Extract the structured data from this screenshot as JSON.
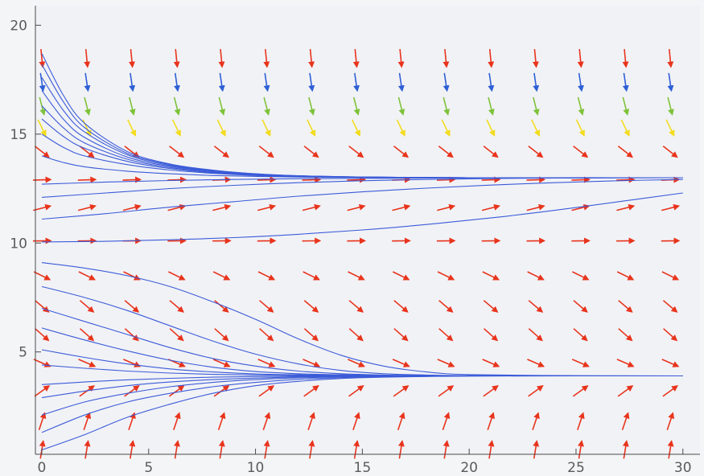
{
  "chart_data": {
    "type": "vector-field",
    "title": "",
    "xlabel": "",
    "ylabel": "",
    "xlim": [
      -0.3,
      30.8
    ],
    "ylim": [
      0.3,
      20.9
    ],
    "x_ticks": [
      0,
      5,
      10,
      15,
      20,
      25,
      30
    ],
    "y_ticks": [
      5,
      10,
      15,
      20
    ],
    "x_tick_labels": [
      "0",
      "5",
      "10",
      "15",
      "20",
      "25",
      "30"
    ],
    "y_tick_labels": [
      "5",
      "10",
      "15",
      "20"
    ],
    "grid": false,
    "legend": "none",
    "arrow_grid": {
      "x": [
        0,
        2.1,
        4.2,
        6.3,
        8.4,
        10.5,
        12.6,
        14.7,
        16.8,
        18.9,
        21.0,
        23.1,
        25.2,
        27.3,
        29.4
      ],
      "y": [
        0.5,
        1.8,
        3.2,
        4.5,
        5.8,
        7.1,
        8.5,
        10.1,
        11.6,
        12.9,
        14.2,
        15.3,
        16.3,
        17.4,
        18.5
      ]
    },
    "steady_states": [
      3.9,
      13.0
    ],
    "unstable_level": 10.05,
    "arrow_colors": [
      "#e8341c",
      "#2e5fd6",
      "#7ec23a",
      "#f2dc1e"
    ],
    "trajectory_color": "#3b5bd8",
    "axis_color": "#4a4a4a",
    "trajectories": [
      {
        "y0": 0.5,
        "x": [
          0,
          2,
          4,
          6,
          8,
          10,
          12,
          14,
          16,
          18,
          20,
          25,
          30
        ],
        "y": [
          0.5,
          1.2,
          2.0,
          2.6,
          3.1,
          3.45,
          3.65,
          3.78,
          3.84,
          3.87,
          3.89,
          3.9,
          3.9
        ]
      },
      {
        "y0": 1.3,
        "x": [
          0,
          2,
          4,
          6,
          8,
          10,
          12,
          14,
          16,
          18,
          20,
          25,
          30
        ],
        "y": [
          1.3,
          2.1,
          2.7,
          3.1,
          3.4,
          3.6,
          3.74,
          3.82,
          3.86,
          3.88,
          3.9,
          3.9,
          3.9
        ]
      },
      {
        "y0": 2.1,
        "x": [
          0,
          2,
          4,
          6,
          8,
          10,
          12,
          14,
          16,
          18,
          20,
          25,
          30
        ],
        "y": [
          2.1,
          2.7,
          3.1,
          3.4,
          3.6,
          3.73,
          3.81,
          3.86,
          3.88,
          3.89,
          3.9,
          3.9,
          3.9
        ]
      },
      {
        "y0": 2.9,
        "x": [
          0,
          2,
          4,
          6,
          8,
          10,
          12,
          14,
          16,
          18,
          20,
          25,
          30
        ],
        "y": [
          2.9,
          3.2,
          3.45,
          3.62,
          3.73,
          3.8,
          3.85,
          3.87,
          3.89,
          3.9,
          3.9,
          3.9,
          3.9
        ]
      },
      {
        "y0": 3.5,
        "x": [
          0,
          2,
          4,
          6,
          8,
          10,
          12,
          14,
          16,
          18,
          20,
          25,
          30
        ],
        "y": [
          3.5,
          3.62,
          3.72,
          3.79,
          3.84,
          3.87,
          3.88,
          3.89,
          3.9,
          3.9,
          3.9,
          3.9,
          3.9
        ]
      },
      {
        "y0": 4.4,
        "x": [
          0,
          2,
          4,
          6,
          8,
          10,
          12,
          14,
          16,
          18,
          20,
          25,
          30
        ],
        "y": [
          4.4,
          4.25,
          4.12,
          4.03,
          3.97,
          3.94,
          3.92,
          3.91,
          3.9,
          3.9,
          3.9,
          3.9,
          3.9
        ]
      },
      {
        "y0": 5.1,
        "x": [
          0,
          2,
          4,
          6,
          8,
          10,
          12,
          14,
          16,
          18,
          20,
          25,
          30
        ],
        "y": [
          5.1,
          4.75,
          4.45,
          4.22,
          4.08,
          3.99,
          3.95,
          3.92,
          3.91,
          3.9,
          3.9,
          3.9,
          3.9
        ]
      },
      {
        "y0": 6.1,
        "x": [
          0,
          2,
          4,
          6,
          8,
          10,
          12,
          14,
          16,
          18,
          20,
          25,
          30
        ],
        "y": [
          6.1,
          5.55,
          5.05,
          4.62,
          4.3,
          4.1,
          4.0,
          3.95,
          3.92,
          3.91,
          3.9,
          3.9,
          3.9
        ]
      },
      {
        "y0": 7.0,
        "x": [
          0,
          2,
          4,
          6,
          8,
          10,
          12,
          14,
          16,
          18,
          20,
          25,
          30
        ],
        "y": [
          7.0,
          6.4,
          5.8,
          5.2,
          4.7,
          4.35,
          4.12,
          4.0,
          3.94,
          3.92,
          3.91,
          3.9,
          3.9
        ]
      },
      {
        "y0": 8.0,
        "x": [
          0,
          2,
          4,
          6,
          8,
          10,
          12,
          14,
          16,
          18,
          20,
          25,
          30
        ],
        "y": [
          8.0,
          7.5,
          6.9,
          6.2,
          5.5,
          4.9,
          4.45,
          4.15,
          4.0,
          3.94,
          3.91,
          3.9,
          3.9
        ]
      },
      {
        "y0": 9.1,
        "x": [
          0,
          2,
          4,
          6,
          8,
          10,
          12,
          14,
          16,
          18,
          20,
          25,
          30
        ],
        "y": [
          9.1,
          8.85,
          8.5,
          8.0,
          7.3,
          6.5,
          5.6,
          4.85,
          4.35,
          4.08,
          3.96,
          3.91,
          3.9
        ]
      },
      {
        "y0": 10.05,
        "x": [
          0,
          3,
          6,
          9,
          12,
          15,
          18,
          21,
          24,
          27,
          30
        ],
        "y": [
          10.05,
          10.08,
          10.15,
          10.25,
          10.4,
          10.6,
          10.85,
          11.15,
          11.5,
          11.9,
          12.3
        ]
      },
      {
        "y0": 11.1,
        "x": [
          0,
          3,
          6,
          9,
          12,
          15,
          18,
          21,
          24,
          27,
          30
        ],
        "y": [
          11.1,
          11.35,
          11.65,
          11.9,
          12.15,
          12.35,
          12.52,
          12.66,
          12.77,
          12.86,
          12.92
        ]
      },
      {
        "y0": 12.1,
        "x": [
          0,
          3,
          6,
          9,
          12,
          15,
          18,
          21,
          24,
          27,
          30
        ],
        "y": [
          12.1,
          12.3,
          12.5,
          12.65,
          12.77,
          12.86,
          12.92,
          12.96,
          12.98,
          12.99,
          13.0
        ]
      },
      {
        "y0": 12.7,
        "x": [
          0,
          3,
          6,
          9,
          12,
          15,
          18,
          21,
          24,
          27,
          30
        ],
        "y": [
          12.7,
          12.8,
          12.87,
          12.92,
          12.95,
          12.97,
          12.98,
          12.99,
          13.0,
          13.0,
          13.0
        ]
      },
      {
        "y0": 14.0,
        "x": [
          0,
          1,
          2,
          4,
          6,
          8,
          10,
          12,
          15,
          20,
          25,
          30
        ],
        "y": [
          14.0,
          13.7,
          13.5,
          13.3,
          13.18,
          13.1,
          13.06,
          13.03,
          13.01,
          13.0,
          13.0,
          13.0
        ]
      },
      {
        "y0": 15.0,
        "x": [
          0,
          1,
          2,
          4,
          6,
          8,
          10,
          12,
          15,
          20,
          25,
          30
        ],
        "y": [
          15.0,
          14.4,
          14.0,
          13.6,
          13.35,
          13.2,
          13.1,
          13.05,
          13.02,
          13.0,
          13.0,
          13.0
        ]
      },
      {
        "y0": 15.7,
        "x": [
          0,
          1,
          2,
          4,
          6,
          8,
          10,
          12,
          15,
          20,
          25,
          30
        ],
        "y": [
          15.7,
          14.9,
          14.35,
          13.75,
          13.42,
          13.23,
          13.12,
          13.06,
          13.02,
          13.0,
          13.0,
          13.0
        ]
      },
      {
        "y0": 16.3,
        "x": [
          0,
          1,
          2,
          4,
          6,
          8,
          10,
          12,
          15,
          20,
          25,
          30
        ],
        "y": [
          16.3,
          15.3,
          14.6,
          13.85,
          13.47,
          13.26,
          13.14,
          13.07,
          13.02,
          13.0,
          13.0,
          13.0
        ]
      },
      {
        "y0": 17.0,
        "x": [
          0,
          1,
          2,
          4,
          6,
          8,
          10,
          12,
          15,
          20,
          25,
          30
        ],
        "y": [
          17.0,
          15.7,
          14.85,
          13.95,
          13.52,
          13.29,
          13.15,
          13.08,
          13.03,
          13.0,
          13.0,
          13.0
        ]
      },
      {
        "y0": 17.6,
        "x": [
          0,
          1,
          2,
          4,
          6,
          8,
          10,
          12,
          15,
          20,
          25,
          30
        ],
        "y": [
          17.6,
          16.1,
          15.1,
          14.05,
          13.56,
          13.31,
          13.16,
          13.08,
          13.03,
          13.0,
          13.0,
          13.0
        ]
      },
      {
        "y0": 18.2,
        "x": [
          0,
          1,
          2,
          4,
          6,
          8,
          10,
          12,
          15,
          20,
          25,
          30
        ],
        "y": [
          18.2,
          16.5,
          15.3,
          14.12,
          13.6,
          13.33,
          13.17,
          13.09,
          13.03,
          13.0,
          13.0,
          13.0
        ]
      },
      {
        "y0": 18.7,
        "x": [
          0,
          1,
          2,
          4,
          6,
          8,
          10,
          12,
          15,
          20,
          25,
          30
        ],
        "y": [
          18.7,
          16.8,
          15.5,
          14.2,
          13.63,
          13.35,
          13.18,
          13.09,
          13.03,
          13.0,
          13.0,
          13.0
        ]
      }
    ]
  }
}
